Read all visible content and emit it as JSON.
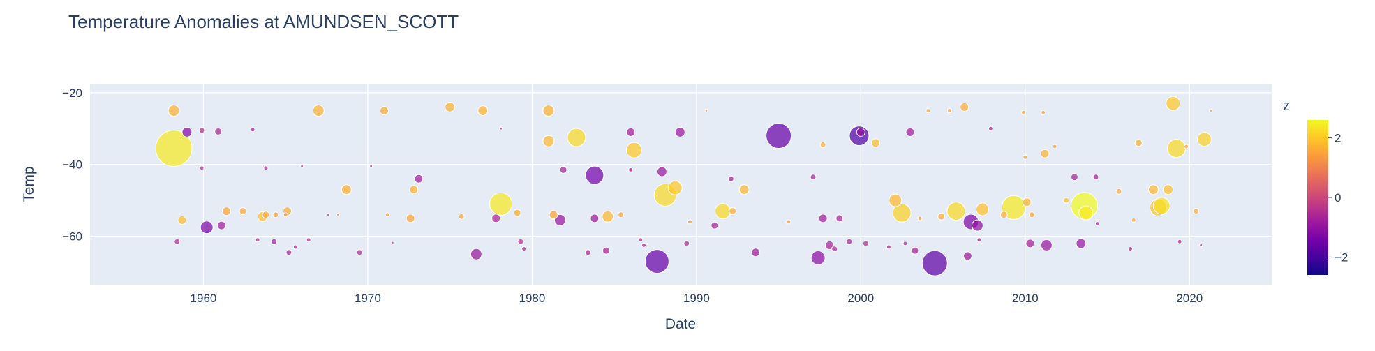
{
  "chart_data": {
    "type": "scatter",
    "title": "Temperature Anomalies at AMUNDSEN_SCOTT",
    "xlabel": "Date",
    "ylabel": "Temp",
    "xlim": [
      1953.1,
      2025.0
    ],
    "ylim": [
      -73.5,
      -17.5
    ],
    "x_ticks": [
      1960,
      1970,
      1980,
      1990,
      2000,
      2010,
      2020
    ],
    "y_ticks": [
      -20,
      -40,
      -60
    ],
    "y_tick_labels": [
      "−20",
      "−40",
      "−60"
    ],
    "grid": true,
    "colorbar": {
      "title": "z",
      "range": [
        -2.6,
        2.6
      ],
      "ticks": [
        2,
        0,
        -2
      ],
      "tick_labels": [
        "2",
        "0",
        "−2"
      ],
      "colorscale": [
        "#0d0887",
        "#46039f",
        "#7201a8",
        "#9c179e",
        "#bd3786",
        "#d8576b",
        "#ed7953",
        "#fb9f3a",
        "#fdca26",
        "#f0f921"
      ]
    },
    "points": [
      {
        "x": 1958.2,
        "y": -35.5,
        "z": 2.4,
        "s": 2.6
      },
      {
        "x": 1958.2,
        "y": -25.0,
        "z": 1.7,
        "s": 0.8
      },
      {
        "x": 1958.7,
        "y": -55.5,
        "z": 1.8,
        "s": 0.6
      },
      {
        "x": 1958.4,
        "y": -61.5,
        "z": -0.5,
        "s": 0.4
      },
      {
        "x": 1959.0,
        "y": -31.0,
        "z": -1.2,
        "s": 0.7
      },
      {
        "x": 1959.9,
        "y": -30.5,
        "z": -0.5,
        "s": 0.4
      },
      {
        "x": 1959.9,
        "y": -41.0,
        "z": -0.4,
        "s": 0.3
      },
      {
        "x": 1960.2,
        "y": -57.5,
        "z": -1.3,
        "s": 0.9
      },
      {
        "x": 1960.9,
        "y": -30.8,
        "z": -0.6,
        "s": 0.5
      },
      {
        "x": 1961.1,
        "y": -57.0,
        "z": -0.8,
        "s": 0.6
      },
      {
        "x": 1961.4,
        "y": -53.0,
        "z": 1.5,
        "s": 0.6
      },
      {
        "x": 1962.4,
        "y": -53.0,
        "z": 1.5,
        "s": 0.5
      },
      {
        "x": 1963.0,
        "y": -30.3,
        "z": -0.6,
        "s": 0.3
      },
      {
        "x": 1963.3,
        "y": -61.0,
        "z": -0.5,
        "s": 0.3
      },
      {
        "x": 1963.6,
        "y": -54.5,
        "z": 1.9,
        "s": 0.7
      },
      {
        "x": 1963.8,
        "y": -54.0,
        "z": 1.5,
        "s": 0.5
      },
      {
        "x": 1963.8,
        "y": -41.0,
        "z": -0.6,
        "s": 0.3
      },
      {
        "x": 1964.3,
        "y": -61.5,
        "z": -0.8,
        "s": 0.4
      },
      {
        "x": 1964.4,
        "y": -54.0,
        "z": 1.4,
        "s": 0.4
      },
      {
        "x": 1965.0,
        "y": -54.0,
        "z": 1.2,
        "s": 0.3
      },
      {
        "x": 1965.1,
        "y": -53.0,
        "z": 1.6,
        "s": 0.6
      },
      {
        "x": 1965.2,
        "y": -64.5,
        "z": -0.6,
        "s": 0.4
      },
      {
        "x": 1965.6,
        "y": -63.0,
        "z": -0.6,
        "s": 0.3
      },
      {
        "x": 1966.0,
        "y": -40.5,
        "z": -0.6,
        "s": 0.2
      },
      {
        "x": 1966.4,
        "y": -61.0,
        "z": -0.5,
        "s": 0.3
      },
      {
        "x": 1967.0,
        "y": -25.0,
        "z": 1.7,
        "s": 0.8
      },
      {
        "x": 1967.6,
        "y": -54.0,
        "z": -0.2,
        "s": 0.2
      },
      {
        "x": 1968.2,
        "y": -54.0,
        "z": 1.0,
        "s": 0.2
      },
      {
        "x": 1968.7,
        "y": -47.0,
        "z": 1.7,
        "s": 0.7
      },
      {
        "x": 1969.5,
        "y": -64.5,
        "z": -0.5,
        "s": 0.4
      },
      {
        "x": 1970.2,
        "y": -40.5,
        "z": -0.3,
        "s": 0.2
      },
      {
        "x": 1971.0,
        "y": -25.0,
        "z": 1.6,
        "s": 0.6
      },
      {
        "x": 1971.2,
        "y": -54.0,
        "z": 1.4,
        "s": 0.3
      },
      {
        "x": 1971.5,
        "y": -61.8,
        "z": -0.4,
        "s": 0.2
      },
      {
        "x": 1972.6,
        "y": -55.0,
        "z": 1.5,
        "s": 0.6
      },
      {
        "x": 1972.8,
        "y": -47.0,
        "z": 1.7,
        "s": 0.6
      },
      {
        "x": 1973.1,
        "y": -44.0,
        "z": -0.8,
        "s": 0.6
      },
      {
        "x": 1975.0,
        "y": -24.0,
        "z": 1.7,
        "s": 0.7
      },
      {
        "x": 1975.7,
        "y": -54.5,
        "z": 1.5,
        "s": 0.4
      },
      {
        "x": 1976.6,
        "y": -65.0,
        "z": -0.9,
        "s": 0.8
      },
      {
        "x": 1977.0,
        "y": -25.0,
        "z": 1.7,
        "s": 0.7
      },
      {
        "x": 1977.8,
        "y": -55.0,
        "z": -0.6,
        "s": 0.6
      },
      {
        "x": 1978.1,
        "y": -51.0,
        "z": 2.4,
        "s": 1.6
      },
      {
        "x": 1978.1,
        "y": -30.0,
        "z": -0.4,
        "s": 0.2
      },
      {
        "x": 1979.1,
        "y": -53.5,
        "z": 1.6,
        "s": 0.5
      },
      {
        "x": 1979.3,
        "y": -61.5,
        "z": -0.5,
        "s": 0.4
      },
      {
        "x": 1979.5,
        "y": -63.5,
        "z": -0.6,
        "s": 0.3
      },
      {
        "x": 1981.0,
        "y": -25.0,
        "z": 1.7,
        "s": 0.8
      },
      {
        "x": 1981.0,
        "y": -33.5,
        "z": 1.8,
        "s": 0.8
      },
      {
        "x": 1981.3,
        "y": -54.0,
        "z": 1.5,
        "s": 0.6
      },
      {
        "x": 1981.7,
        "y": -55.5,
        "z": -0.9,
        "s": 0.8
      },
      {
        "x": 1981.9,
        "y": -41.5,
        "z": -0.7,
        "s": 0.5
      },
      {
        "x": 1982.7,
        "y": -32.5,
        "z": 2.2,
        "s": 1.3
      },
      {
        "x": 1983.4,
        "y": -64.5,
        "z": -0.6,
        "s": 0.4
      },
      {
        "x": 1983.8,
        "y": -43.0,
        "z": -1.4,
        "s": 1.3
      },
      {
        "x": 1983.8,
        "y": -55.0,
        "z": -0.8,
        "s": 0.6
      },
      {
        "x": 1984.5,
        "y": -64.0,
        "z": -0.7,
        "s": 0.5
      },
      {
        "x": 1984.6,
        "y": -54.5,
        "z": 1.8,
        "s": 0.8
      },
      {
        "x": 1985.4,
        "y": -54.0,
        "z": 1.5,
        "s": 0.4
      },
      {
        "x": 1986.0,
        "y": -31.0,
        "z": -0.8,
        "s": 0.6
      },
      {
        "x": 1986.2,
        "y": -36.0,
        "z": 2.0,
        "s": 1.1
      },
      {
        "x": 1986.0,
        "y": -41.5,
        "z": -0.6,
        "s": 0.3
      },
      {
        "x": 1986.6,
        "y": -61.0,
        "z": -0.5,
        "s": 0.3
      },
      {
        "x": 1986.8,
        "y": -62.5,
        "z": -0.6,
        "s": 0.3
      },
      {
        "x": 1987.6,
        "y": -67.0,
        "z": -1.6,
        "s": 1.7
      },
      {
        "x": 1987.9,
        "y": -42.0,
        "z": -0.9,
        "s": 0.7
      },
      {
        "x": 1988.1,
        "y": -48.5,
        "z": 2.2,
        "s": 1.6
      },
      {
        "x": 1988.7,
        "y": -46.5,
        "z": 2.0,
        "s": 1.0
      },
      {
        "x": 1989.0,
        "y": -31.0,
        "z": -0.9,
        "s": 0.7
      },
      {
        "x": 1989.4,
        "y": -62.0,
        "z": -0.5,
        "s": 0.4
      },
      {
        "x": 1989.6,
        "y": -56.0,
        "z": 1.4,
        "s": 0.3
      },
      {
        "x": 1990.6,
        "y": -25.0,
        "z": 1.4,
        "s": 0.2
      },
      {
        "x": 1991.1,
        "y": -57.0,
        "z": -0.6,
        "s": 0.5
      },
      {
        "x": 1991.6,
        "y": -53.0,
        "z": 2.2,
        "s": 1.1
      },
      {
        "x": 1992.1,
        "y": -44.0,
        "z": -0.6,
        "s": 0.4
      },
      {
        "x": 1992.2,
        "y": -53.0,
        "z": 1.6,
        "s": 0.5
      },
      {
        "x": 1992.9,
        "y": -47.0,
        "z": 1.8,
        "s": 0.7
      },
      {
        "x": 1993.6,
        "y": -64.5,
        "z": -0.8,
        "s": 0.6
      },
      {
        "x": 1995.0,
        "y": -32.0,
        "z": -1.6,
        "s": 1.8
      },
      {
        "x": 1995.6,
        "y": -56.0,
        "z": 1.4,
        "s": 0.3
      },
      {
        "x": 1997.1,
        "y": -43.5,
        "z": -0.6,
        "s": 0.4
      },
      {
        "x": 1997.4,
        "y": -66.0,
        "z": -1.1,
        "s": 1.0
      },
      {
        "x": 1997.7,
        "y": -55.0,
        "z": -0.8,
        "s": 0.6
      },
      {
        "x": 1997.7,
        "y": -34.5,
        "z": 1.6,
        "s": 0.4
      },
      {
        "x": 1998.1,
        "y": -62.5,
        "z": -0.7,
        "s": 0.6
      },
      {
        "x": 1998.4,
        "y": -63.5,
        "z": -0.6,
        "s": 0.4
      },
      {
        "x": 1998.7,
        "y": -55.0,
        "z": -0.6,
        "s": 0.5
      },
      {
        "x": 1999.3,
        "y": -61.5,
        "z": -0.6,
        "s": 0.4
      },
      {
        "x": 1999.9,
        "y": -32.0,
        "z": -1.9,
        "s": 1.4
      },
      {
        "x": 2000.0,
        "y": -31.0,
        "z": -1.0,
        "s": 0.6
      },
      {
        "x": 2000.3,
        "y": -62.0,
        "z": -0.5,
        "s": 0.4
      },
      {
        "x": 2000.9,
        "y": -34.0,
        "z": 1.8,
        "s": 0.6
      },
      {
        "x": 2001.7,
        "y": -63.0,
        "z": -0.5,
        "s": 0.3
      },
      {
        "x": 2002.1,
        "y": -50.0,
        "z": 1.8,
        "s": 0.9
      },
      {
        "x": 2002.5,
        "y": -53.5,
        "z": 2.1,
        "s": 1.3
      },
      {
        "x": 2002.7,
        "y": -62.0,
        "z": -0.6,
        "s": 0.3
      },
      {
        "x": 2003.0,
        "y": -31.0,
        "z": -0.8,
        "s": 0.6
      },
      {
        "x": 2003.3,
        "y": -64.0,
        "z": -0.7,
        "s": 0.5
      },
      {
        "x": 2003.6,
        "y": -55.0,
        "z": 1.4,
        "s": 0.3
      },
      {
        "x": 2004.1,
        "y": -25.0,
        "z": 1.5,
        "s": 0.3
      },
      {
        "x": 2004.5,
        "y": -67.5,
        "z": -1.7,
        "s": 1.8
      },
      {
        "x": 2004.9,
        "y": -54.5,
        "z": 1.6,
        "s": 0.5
      },
      {
        "x": 2005.4,
        "y": -25.0,
        "z": 1.4,
        "s": 0.3
      },
      {
        "x": 2005.8,
        "y": -53.0,
        "z": 2.2,
        "s": 1.3
      },
      {
        "x": 2006.3,
        "y": -24.0,
        "z": 1.6,
        "s": 0.6
      },
      {
        "x": 2006.5,
        "y": -65.5,
        "z": -0.8,
        "s": 0.6
      },
      {
        "x": 2006.7,
        "y": -56.0,
        "z": -1.3,
        "s": 1.1
      },
      {
        "x": 2007.1,
        "y": -57.0,
        "z": -1.0,
        "s": 0.8
      },
      {
        "x": 2007.4,
        "y": -52.5,
        "z": 1.9,
        "s": 0.9
      },
      {
        "x": 2007.2,
        "y": -61.0,
        "z": -0.6,
        "s": 0.3
      },
      {
        "x": 2007.9,
        "y": -30.0,
        "z": -0.6,
        "s": 0.3
      },
      {
        "x": 2008.7,
        "y": -54.0,
        "z": 1.6,
        "s": 0.5
      },
      {
        "x": 2009.3,
        "y": -52.0,
        "z": 2.4,
        "s": 1.7
      },
      {
        "x": 2009.9,
        "y": -25.5,
        "z": 1.5,
        "s": 0.3
      },
      {
        "x": 2010.0,
        "y": -38.0,
        "z": 1.4,
        "s": 0.3
      },
      {
        "x": 2010.1,
        "y": -50.5,
        "z": 1.7,
        "s": 0.6
      },
      {
        "x": 2010.3,
        "y": -62.0,
        "z": -0.7,
        "s": 0.6
      },
      {
        "x": 2010.4,
        "y": -54.0,
        "z": 1.5,
        "s": 0.4
      },
      {
        "x": 2011.2,
        "y": -37.0,
        "z": 1.7,
        "s": 0.6
      },
      {
        "x": 2011.1,
        "y": -25.5,
        "z": 1.4,
        "s": 0.3
      },
      {
        "x": 2011.3,
        "y": -62.5,
        "z": -0.9,
        "s": 0.8
      },
      {
        "x": 2011.8,
        "y": -35.0,
        "z": 1.4,
        "s": 0.3
      },
      {
        "x": 2012.5,
        "y": -50.0,
        "z": 1.9,
        "s": 0.4
      },
      {
        "x": 2013.0,
        "y": -43.5,
        "z": -0.7,
        "s": 0.5
      },
      {
        "x": 2013.4,
        "y": -62.0,
        "z": -0.9,
        "s": 0.7
      },
      {
        "x": 2013.6,
        "y": -51.5,
        "z": 2.6,
        "s": 1.9
      },
      {
        "x": 2013.7,
        "y": -53.5,
        "z": 2.4,
        "s": 1.0
      },
      {
        "x": 2014.3,
        "y": -43.5,
        "z": -0.6,
        "s": 0.4
      },
      {
        "x": 2014.4,
        "y": -56.5,
        "z": -0.6,
        "s": 0.3
      },
      {
        "x": 2015.7,
        "y": -47.5,
        "z": 1.6,
        "s": 0.4
      },
      {
        "x": 2016.4,
        "y": -63.5,
        "z": -0.6,
        "s": 0.3
      },
      {
        "x": 2016.6,
        "y": -55.5,
        "z": 1.5,
        "s": 0.3
      },
      {
        "x": 2016.9,
        "y": -34.0,
        "z": 1.7,
        "s": 0.5
      },
      {
        "x": 2017.8,
        "y": -47.0,
        "z": 1.8,
        "s": 0.7
      },
      {
        "x": 2018.1,
        "y": -52.0,
        "z": 1.9,
        "s": 1.2
      },
      {
        "x": 2018.3,
        "y": -51.5,
        "z": 2.3,
        "s": 1.2
      },
      {
        "x": 2018.7,
        "y": -47.0,
        "z": 1.9,
        "s": 0.7
      },
      {
        "x": 2019.0,
        "y": -23.0,
        "z": 2.0,
        "s": 1.0
      },
      {
        "x": 2019.2,
        "y": -35.5,
        "z": 2.2,
        "s": 1.3
      },
      {
        "x": 2019.4,
        "y": -61.5,
        "z": -0.5,
        "s": 0.3
      },
      {
        "x": 2019.8,
        "y": -35.0,
        "z": 1.5,
        "s": 0.3
      },
      {
        "x": 2020.4,
        "y": -53.0,
        "z": 1.6,
        "s": 0.4
      },
      {
        "x": 2020.9,
        "y": -33.0,
        "z": 2.1,
        "s": 1.0
      },
      {
        "x": 2021.3,
        "y": -25.0,
        "z": 1.4,
        "s": 0.2
      },
      {
        "x": 2020.7,
        "y": -62.5,
        "z": -0.4,
        "s": 0.2
      }
    ]
  }
}
